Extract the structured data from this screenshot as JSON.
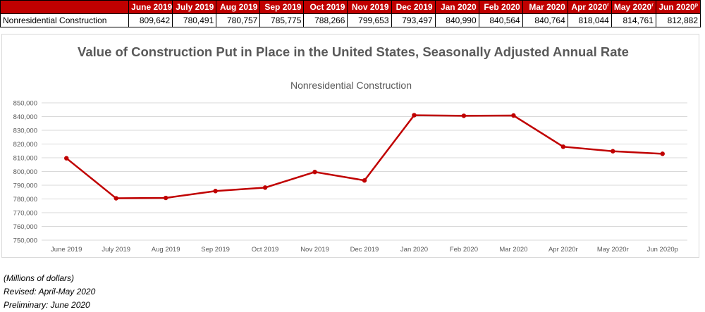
{
  "table": {
    "months": [
      "June 2019",
      "July 2019",
      "Aug 2019",
      "Sep 2019",
      "Oct 2019",
      "Nov 2019",
      "Dec 2019",
      "Jan 2020",
      "Feb 2020",
      "Mar 2020",
      "Apr 2020",
      "May 2020",
      "Jun 2020"
    ],
    "superscripts": [
      "",
      "",
      "",
      "",
      "",
      "",
      "",
      "",
      "",
      "",
      "r",
      "r",
      "p"
    ],
    "row_label": "Nonresidential Construction",
    "values": [
      "809,642",
      "780,491",
      "780,757",
      "785,775",
      "788,266",
      "799,653",
      "793,497",
      "840,990",
      "840,564",
      "840,764",
      "818,044",
      "814,761",
      "812,882"
    ]
  },
  "chart_data": {
    "type": "line",
    "title": "Value of Construction Put in Place in the United States, Seasonally Adjusted Annual Rate",
    "subtitle": "Nonresidential Construction",
    "categories": [
      "June 2019",
      "July 2019",
      "Aug 2019",
      "Sep 2019",
      "Oct 2019",
      "Nov 2019",
      "Dec 2019",
      "Jan 2020",
      "Feb 2020",
      "Mar 2020",
      "Apr 2020r",
      "May 2020r",
      "Jun 2020p"
    ],
    "series": [
      {
        "values": [
          809642,
          780491,
          780757,
          785775,
          788266,
          799653,
          793497,
          840990,
          840564,
          840764,
          818044,
          814761,
          812882
        ]
      }
    ],
    "ylim": [
      750000,
      850000
    ],
    "yticks": [
      750000,
      760000,
      770000,
      780000,
      790000,
      800000,
      810000,
      820000,
      830000,
      840000,
      850000
    ],
    "ytick_labels": [
      "750,000",
      "760,000",
      "770,000",
      "780,000",
      "790,000",
      "800,000",
      "810,000",
      "820,000",
      "830,000",
      "840,000",
      "850,000"
    ],
    "grid": true,
    "line_color": "#c00000",
    "gridline_color": "#d9d9d9",
    "axis_text_color": "#595959"
  },
  "notes": [
    "(Millions of dollars)",
    "Revised: April-May 2020",
    "Preliminary: June 2020"
  ],
  "colors": {
    "header_bg": "#c00000",
    "header_text": "#ffffff",
    "title": "#595959"
  }
}
